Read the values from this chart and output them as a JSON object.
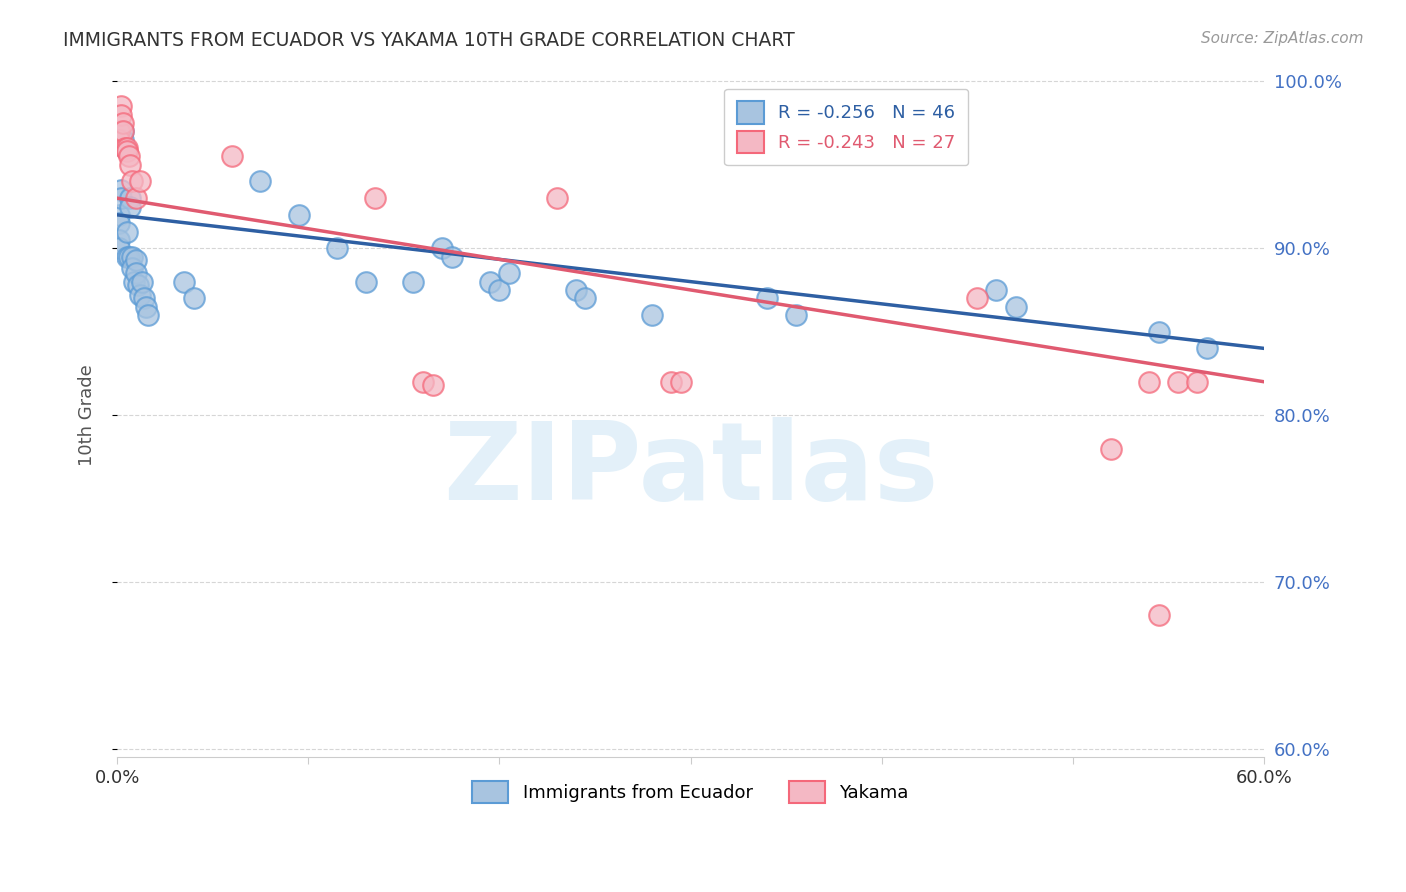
{
  "title": "IMMIGRANTS FROM ECUADOR VS YAKAMA 10TH GRADE CORRELATION CHART",
  "source": "Source: ZipAtlas.com",
  "ylabel": "10th Grade",
  "x_min": 0.0,
  "x_max": 0.6,
  "y_min": 0.595,
  "y_max": 1.005,
  "legend_series": [
    "Immigrants from Ecuador",
    "Yakama"
  ],
  "blue_color": "#5b9bd5",
  "pink_color": "#f4687a",
  "blue_scatter_color": "#a8c4e0",
  "pink_scatter_color": "#f4b8c4",
  "blue_line_color": "#2e5fa3",
  "pink_line_color": "#e05a70",
  "watermark": "ZIPatlas",
  "blue_R": -0.256,
  "blue_N": 46,
  "pink_R": -0.243,
  "pink_N": 27,
  "blue_x": [
    0.001,
    0.001,
    0.001,
    0.001,
    0.002,
    0.002,
    0.003,
    0.003,
    0.004,
    0.005,
    0.005,
    0.006,
    0.007,
    0.007,
    0.008,
    0.008,
    0.009,
    0.01,
    0.01,
    0.011,
    0.012,
    0.013,
    0.014,
    0.015,
    0.016,
    0.035,
    0.04,
    0.075,
    0.095,
    0.115,
    0.13,
    0.155,
    0.17,
    0.175,
    0.195,
    0.2,
    0.205,
    0.24,
    0.245,
    0.28,
    0.34,
    0.355,
    0.46,
    0.47,
    0.545,
    0.57
  ],
  "blue_y": [
    0.92,
    0.915,
    0.905,
    0.9,
    0.935,
    0.93,
    0.97,
    0.965,
    0.96,
    0.91,
    0.895,
    0.895,
    0.93,
    0.925,
    0.895,
    0.888,
    0.88,
    0.893,
    0.885,
    0.878,
    0.872,
    0.88,
    0.87,
    0.865,
    0.86,
    0.88,
    0.87,
    0.94,
    0.92,
    0.9,
    0.88,
    0.88,
    0.9,
    0.895,
    0.88,
    0.875,
    0.885,
    0.875,
    0.87,
    0.86,
    0.87,
    0.86,
    0.875,
    0.865,
    0.85,
    0.84
  ],
  "pink_x": [
    0.001,
    0.001,
    0.002,
    0.002,
    0.003,
    0.003,
    0.004,
    0.005,
    0.005,
    0.006,
    0.007,
    0.008,
    0.01,
    0.012,
    0.06,
    0.135,
    0.16,
    0.165,
    0.23,
    0.29,
    0.295,
    0.45,
    0.52,
    0.54,
    0.545,
    0.555,
    0.565
  ],
  "pink_y": [
    0.97,
    0.965,
    0.985,
    0.98,
    0.975,
    0.97,
    0.96,
    0.96,
    0.958,
    0.955,
    0.95,
    0.94,
    0.93,
    0.94,
    0.955,
    0.93,
    0.82,
    0.818,
    0.93,
    0.82,
    0.82,
    0.87,
    0.78,
    0.82,
    0.68,
    0.82,
    0.82
  ],
  "blue_line_x0": 0.0,
  "blue_line_x1": 0.6,
  "blue_line_y0": 0.92,
  "blue_line_y1": 0.84,
  "pink_line_x0": 0.0,
  "pink_line_x1": 0.6,
  "pink_line_y0": 0.93,
  "pink_line_y1": 0.82
}
